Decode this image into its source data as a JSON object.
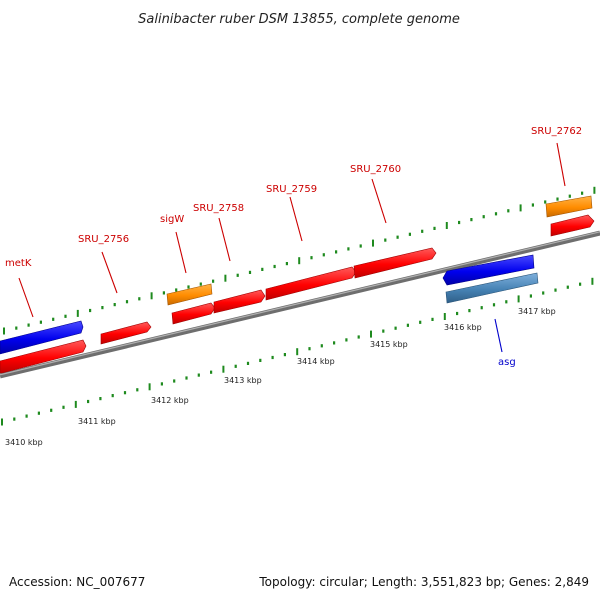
{
  "title": "Salinibacter ruber DSM 13855, complete genome",
  "footer": {
    "accession": "Accession: NC_007677",
    "summary": "Topology: circular; Length: 3,551,823 bp; Genes: 2,849"
  },
  "colors": {
    "cds_forward": "#ff0000",
    "cds_reverse_blue": "#0000ee",
    "rna": "#ff8c00",
    "steelblue": "#4682b4",
    "backbone": "#888888",
    "ticks": "#1e8a1e",
    "label_red": "#cc0000",
    "label_blue": "#0000cc"
  },
  "scale_labels": [
    "3410 kbp",
    "3411 kbp",
    "3412 kbp",
    "3413 kbp",
    "3414 kbp",
    "3415 kbp",
    "3416 kbp",
    "3417 kbp"
  ],
  "gene_labels": [
    {
      "text": "metK",
      "color": "#cc0000"
    },
    {
      "text": "SRU_2756",
      "color": "#cc0000"
    },
    {
      "text": "sigW",
      "color": "#cc0000"
    },
    {
      "text": "SRU_2758",
      "color": "#cc0000"
    },
    {
      "text": "SRU_2759",
      "color": "#cc0000"
    },
    {
      "text": "SRU_2760",
      "color": "#cc0000"
    },
    {
      "text": "SRU_2762",
      "color": "#cc0000"
    },
    {
      "text": "asg",
      "color": "#0000cc"
    }
  ]
}
